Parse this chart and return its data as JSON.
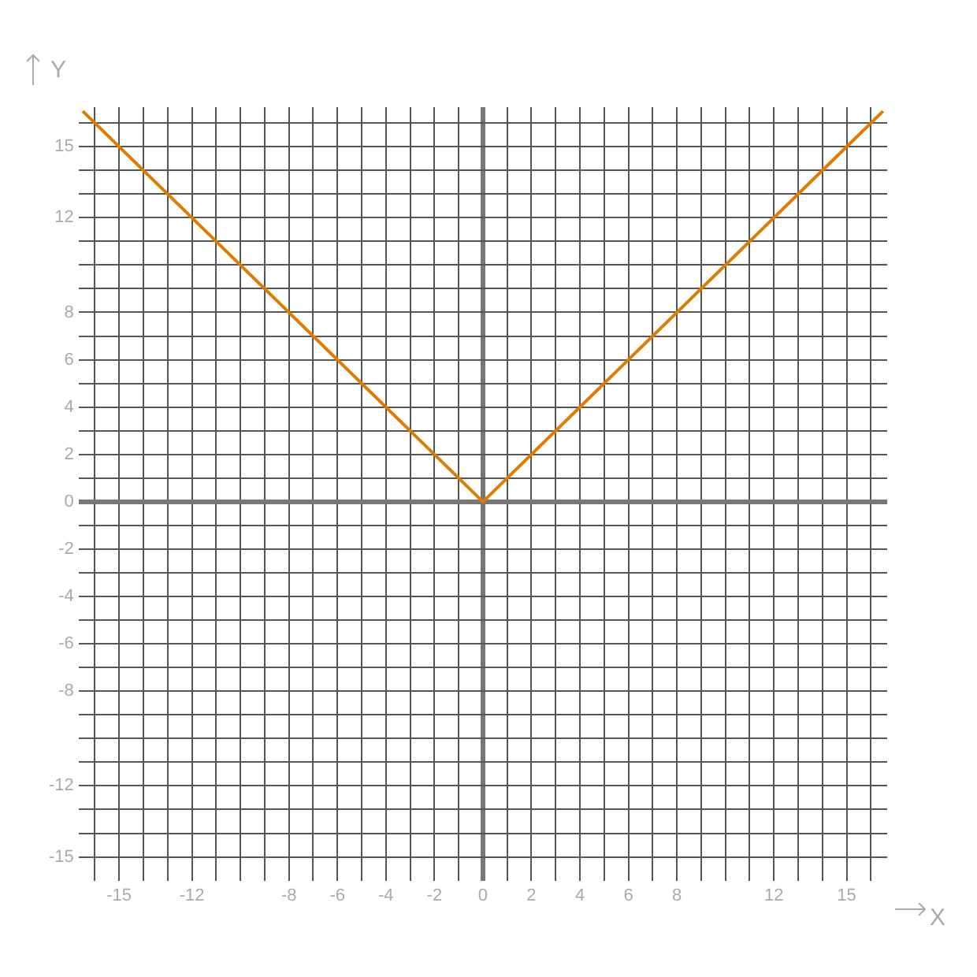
{
  "chart_data": {
    "type": "line",
    "xlabel": "X",
    "ylabel": "Y",
    "series": [
      {
        "color": "#e07b00",
        "x": [
          -16.5,
          0,
          16.5
        ],
        "values": [
          16.5,
          0,
          16.5
        ]
      }
    ],
    "xlim": [
      -16.67,
      16.67
    ],
    "ylim": [
      -16,
      16.67
    ],
    "xticks": [
      {
        "value": -16,
        "label": null
      },
      -15,
      {
        "value": -14,
        "label": null
      },
      {
        "value": -13,
        "label": null
      },
      -12,
      {
        "value": -11,
        "label": null
      },
      {
        "value": -10,
        "label": null
      },
      {
        "value": -9,
        "label": null
      },
      -8,
      {
        "value": -7,
        "label": null
      },
      -6,
      {
        "value": -5,
        "label": null
      },
      -4,
      {
        "value": -3,
        "label": null
      },
      -2,
      {
        "value": -1,
        "label": null
      },
      0,
      {
        "value": 1,
        "label": null
      },
      2,
      {
        "value": 3,
        "label": null
      },
      4,
      {
        "value": 5,
        "label": null
      },
      6,
      {
        "value": 7,
        "label": null
      },
      8,
      {
        "value": 9,
        "label": null
      },
      {
        "value": 10,
        "label": null
      },
      {
        "value": 11,
        "label": null
      },
      12,
      {
        "value": 13,
        "label": null
      },
      {
        "value": 14,
        "label": null
      },
      15,
      {
        "value": 16,
        "label": null
      }
    ],
    "yticks": [
      -15,
      {
        "value": -14,
        "label": null
      },
      {
        "value": -13,
        "label": null
      },
      -12,
      {
        "value": -11,
        "label": null
      },
      {
        "value": -10,
        "label": null
      },
      {
        "value": -9,
        "label": null
      },
      -8,
      {
        "value": -7,
        "label": null
      },
      -6,
      {
        "value": -5,
        "label": null
      },
      -4,
      {
        "value": -3,
        "label": null
      },
      -2,
      {
        "value": -1,
        "label": null
      },
      0,
      {
        "value": 1,
        "label": null
      },
      2,
      {
        "value": 3,
        "label": null
      },
      4,
      {
        "value": 5,
        "label": null
      },
      6,
      {
        "value": 7,
        "label": null
      },
      8,
      {
        "value": 9,
        "label": null
      },
      {
        "value": 10,
        "label": null
      },
      {
        "value": 11,
        "label": null
      },
      12,
      {
        "value": 13,
        "label": null
      },
      {
        "value": 14,
        "label": null
      },
      15,
      {
        "value": 16,
        "label": null
      }
    ],
    "grid": true,
    "legend": false,
    "marker": "none",
    "line_style": "solid"
  }
}
